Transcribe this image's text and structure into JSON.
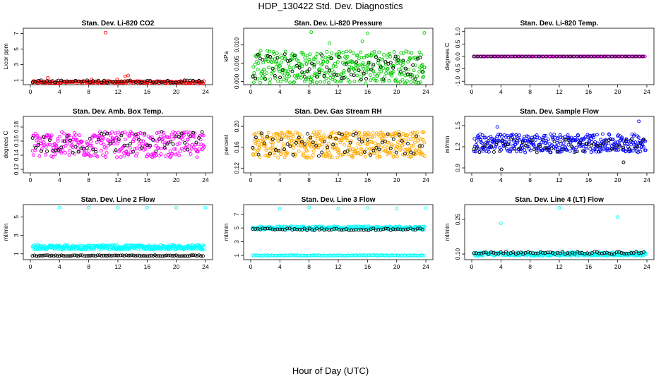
{
  "title": "HDP_130422  Std. Dev. Diagnostics",
  "xlabel": "Hour of Day (UTC)",
  "chart_data": [
    {
      "type": "scatter",
      "title": "Stan. Dev. Li-820 CO2",
      "ylabel": "Licor ppm",
      "color": "#ff0000",
      "x_ticks": [
        0,
        4,
        8,
        12,
        16,
        20,
        24
      ],
      "xlim": [
        0,
        24
      ],
      "y_ticks": [
        1,
        3,
        5,
        7
      ],
      "ylim": [
        0.7,
        7.4
      ],
      "series": [
        {
          "name": "colored",
          "base": 0.75,
          "spread": 0.15,
          "n": 200,
          "outliers": [
            [
              2.4,
              1.3
            ],
            [
              8.4,
              1.1
            ],
            [
              10.3,
              7.1
            ],
            [
              11.9,
              1.1
            ],
            [
              13.0,
              1.5
            ],
            [
              13.4,
              1.6
            ]
          ]
        },
        {
          "name": "black",
          "base": 0.85,
          "spread": 0.15,
          "n": 60,
          "outliers": []
        }
      ]
    },
    {
      "type": "scatter",
      "title": "Stan. Dev. Li-820 Pressure",
      "ylabel": "kPa",
      "color": "#00cc00",
      "x_ticks": [
        0,
        4,
        8,
        12,
        16,
        20,
        24
      ],
      "xlim": [
        0,
        24
      ],
      "y_ticks": [
        0.0,
        0.005,
        0.01
      ],
      "ylim": [
        -0.0003,
        0.014
      ],
      "series": [
        {
          "name": "colored",
          "base": 0.004,
          "spread": 0.0045,
          "n": 380,
          "outliers": [
            [
              8.3,
              0.0135
            ],
            [
              15.3,
              0.011
            ],
            [
              16.0,
              0.0132
            ],
            [
              23.8,
              0.0133
            ],
            [
              10.8,
              0.0105
            ]
          ]
        },
        {
          "name": "black",
          "base": 0.004,
          "spread": 0.0035,
          "n": 70,
          "outliers": []
        }
      ]
    },
    {
      "type": "scatter",
      "title": "Stan. Dev. Li-820 Temp.",
      "ylabel": "degrees C",
      "color": "#ff00ff",
      "x_ticks": [
        0,
        4,
        8,
        12,
        16,
        20,
        24
      ],
      "xlim": [
        0,
        24
      ],
      "y_ticks": [
        -1.0,
        -0.5,
        0.0,
        0.5,
        1.0
      ],
      "ylim": [
        -1.05,
        1.05
      ],
      "series": [
        {
          "name": "colored",
          "base": 0.0,
          "spread": 0.0,
          "n": 140,
          "outliers": []
        },
        {
          "name": "black",
          "base": 0.0,
          "spread": 0.0,
          "n": 50,
          "outliers": []
        }
      ]
    },
    {
      "type": "scatter",
      "title": "Stan. Dev. Amb. Box Temp.",
      "ylabel": "degrees C",
      "color": "#ff00ff",
      "x_ticks": [
        0,
        4,
        8,
        12,
        16,
        20,
        24
      ],
      "xlim": [
        0,
        24
      ],
      "y_ticks": [
        0.12,
        0.14,
        0.16,
        0.18
      ],
      "ylim": [
        0.118,
        0.192
      ],
      "series": [
        {
          "name": "colored",
          "base": 0.155,
          "spread": 0.018,
          "n": 330,
          "outliers": []
        },
        {
          "name": "black",
          "base": 0.158,
          "spread": 0.016,
          "n": 60,
          "outliers": []
        }
      ]
    },
    {
      "type": "scatter",
      "title": "Stan. Dev. Gas Stream RH",
      "ylabel": "percent",
      "color": "#ffaa00",
      "x_ticks": [
        0,
        4,
        8,
        12,
        16,
        20,
        24
      ],
      "xlim": [
        0,
        24
      ],
      "y_ticks": [
        0.12,
        0.16,
        0.2
      ],
      "ylim": [
        0.115,
        0.215
      ],
      "series": [
        {
          "name": "colored",
          "base": 0.165,
          "spread": 0.025,
          "n": 420,
          "outliers": []
        },
        {
          "name": "black",
          "base": 0.165,
          "spread": 0.022,
          "n": 60,
          "outliers": []
        }
      ]
    },
    {
      "type": "scatter",
      "title": "Stan. Dev. Sample Flow",
      "ylabel": "ml/min",
      "color": "#0000ff",
      "x_ticks": [
        0,
        4,
        8,
        12,
        16,
        20,
        24
      ],
      "xlim": [
        0,
        24
      ],
      "y_ticks": [
        0.9,
        1.2,
        1.5
      ],
      "ylim": [
        0.86,
        1.6
      ],
      "series": [
        {
          "name": "colored",
          "base": 1.25,
          "spread": 0.13,
          "n": 380,
          "outliers": [
            [
              3.5,
              1.48
            ],
            [
              22.9,
              1.56
            ]
          ]
        },
        {
          "name": "black",
          "base": 1.22,
          "spread": 0.1,
          "n": 60,
          "outliers": [
            [
              4.1,
              0.88
            ],
            [
              20.8,
              0.98
            ]
          ]
        }
      ]
    },
    {
      "type": "scatter",
      "title": "Stan. Dev. Line 2 Flow",
      "ylabel": "ml/min",
      "color": "#00ffff",
      "x_ticks": [
        0,
        4,
        8,
        12,
        16,
        20,
        24
      ],
      "xlim": [
        0,
        24
      ],
      "y_ticks": [
        1,
        3,
        5
      ],
      "ylim": [
        0.6,
        6.1
      ],
      "series": [
        {
          "name": "colored",
          "base": 1.7,
          "spread": 0.25,
          "n": 380,
          "outliers": [
            [
              4,
              6
            ],
            [
              8,
              6
            ],
            [
              12,
              6
            ],
            [
              16,
              6
            ],
            [
              20,
              6
            ],
            [
              24,
              6
            ]
          ]
        },
        {
          "name": "black",
          "base": 0.8,
          "spread": 0.05,
          "n": 90,
          "outliers": []
        }
      ]
    },
    {
      "type": "scatter",
      "title": "Stan. Dev. Line 3 Flow",
      "ylabel": "ml/min",
      "color": "#00ffff",
      "x_ticks": [
        0,
        4,
        8,
        12,
        16,
        20,
        24
      ],
      "xlim": [
        0,
        24
      ],
      "y_ticks": [
        1,
        3,
        5,
        7
      ],
      "ylim": [
        0.7,
        8.1
      ],
      "series": [
        {
          "name": "colored",
          "base": 5.0,
          "spread": 0.25,
          "n": 300,
          "outliers": [
            [
              4,
              7.8
            ],
            [
              8,
              8
            ],
            [
              12,
              7.8
            ],
            [
              16,
              7.9
            ],
            [
              20,
              7.8
            ],
            [
              24,
              7.9
            ]
          ]
        },
        {
          "name": "colored-low",
          "base": 1.0,
          "spread": 0.05,
          "n": 120,
          "outliers": []
        },
        {
          "name": "black",
          "base": 4.8,
          "spread": 0.15,
          "n": 70,
          "outliers": []
        }
      ]
    },
    {
      "type": "scatter",
      "title": "Stan. Dev. Line 4 (LT) Flow",
      "ylabel": "ml/min",
      "color": "#00ffff",
      "x_ticks": [
        0,
        4,
        8,
        12,
        16,
        20,
        24
      ],
      "xlim": [
        0,
        24
      ],
      "y_ticks": [
        0.1,
        0.25
      ],
      "ylim": [
        0.085,
        0.305
      ],
      "series": [
        {
          "name": "colored",
          "base": 0.1,
          "spread": 0.008,
          "n": 320,
          "outliers": [
            [
              4,
              0.233
            ],
            [
              12,
              0.3
            ],
            [
              20,
              0.26
            ]
          ]
        },
        {
          "name": "black",
          "base": 0.105,
          "spread": 0.006,
          "n": 70,
          "outliers": []
        }
      ]
    }
  ]
}
